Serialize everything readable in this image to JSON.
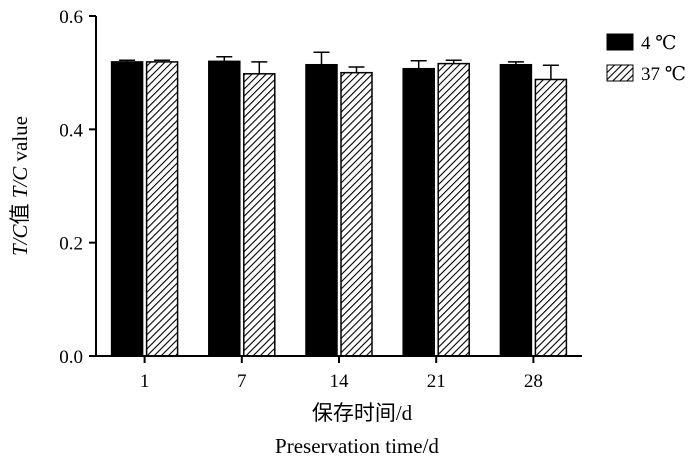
{
  "chart_data": {
    "type": "bar",
    "categories": [
      "1",
      "7",
      "14",
      "21",
      "28"
    ],
    "series": [
      {
        "name": "4 ℃",
        "values": [
          0.519,
          0.52,
          0.514,
          0.507,
          0.514
        ],
        "errors": [
          0.003,
          0.008,
          0.022,
          0.014,
          0.005
        ],
        "fill": "#000000",
        "pattern": "solid"
      },
      {
        "name": "37 ℃",
        "values": [
          0.519,
          0.498,
          0.5,
          0.516,
          0.488
        ],
        "errors": [
          0.003,
          0.021,
          0.01,
          0.006,
          0.025
        ],
        "fill": "#ffffff",
        "pattern": "diagonal-hatch"
      }
    ],
    "yticks": [
      "0.0",
      "0.2",
      "0.4",
      "0.6"
    ],
    "ylim": [
      0,
      0.6
    ],
    "xlabel_cn": "保存时间/d",
    "xlabel_en": "Preservation time/d",
    "ylabel_italic1": "T/C",
    "ylabel_cn": "值 ",
    "ylabel_italic2": "T/C",
    "ylabel_rest": " value",
    "legend_position": "top-right",
    "grid": false
  }
}
